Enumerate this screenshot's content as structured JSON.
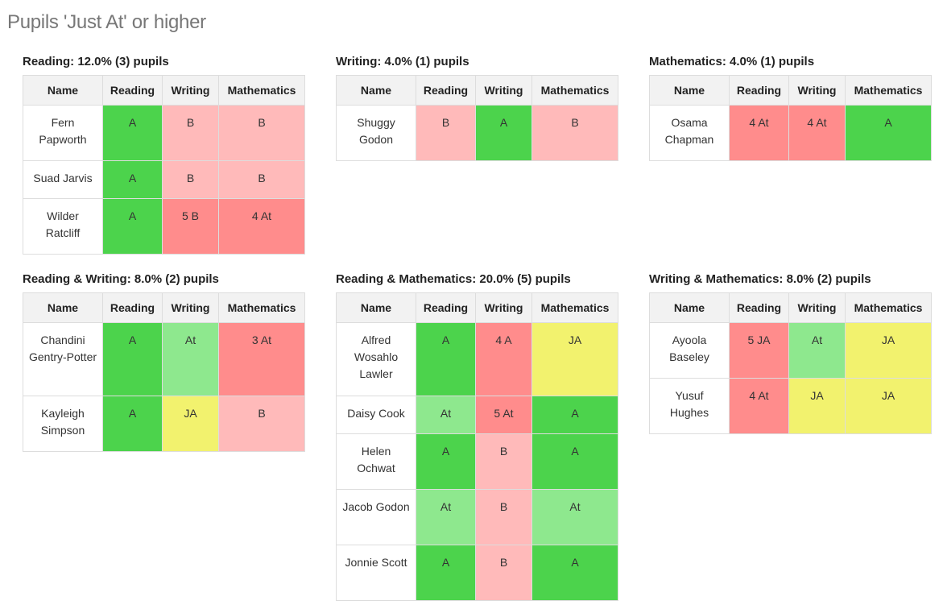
{
  "page_title": "Pupils 'Just At' or higher",
  "columns": [
    "Name",
    "Reading",
    "Writing",
    "Mathematics"
  ],
  "grade_colors": {
    "A": "#4cd34c",
    "At": "#8ee88e",
    "JA": "#f2f26e",
    "B": "#ffbaba",
    "below_with_score": "#ff8c8c",
    "header": "#f2f2f2",
    "border": "#dddddd"
  },
  "groups": [
    {
      "title": "Reading: 12.0% (3) pupils",
      "rows": [
        {
          "name": "Fern Papworth",
          "reading": "A",
          "writing": "B",
          "mathematics": "B"
        },
        {
          "name": "Suad Jarvis",
          "reading": "A",
          "writing": "B",
          "mathematics": "B"
        },
        {
          "name": "Wilder Ratcliff",
          "reading": "A",
          "writing": "5 B",
          "mathematics": "4 At"
        }
      ]
    },
    {
      "title": "Writing: 4.0% (1) pupils",
      "rows": [
        {
          "name": "Shuggy Godon",
          "reading": "B",
          "writing": "A",
          "mathematics": "B"
        }
      ]
    },
    {
      "title": "Mathematics: 4.0% (1) pupils",
      "rows": [
        {
          "name": "Osama Chapman",
          "reading": "4 At",
          "writing": "4 At",
          "mathematics": "A"
        }
      ]
    },
    {
      "title": "Reading & Writing: 8.0% (2) pupils",
      "rows": [
        {
          "name": "Chandini Gentry-Potter",
          "reading": "A",
          "writing": "At",
          "mathematics": "3 At"
        },
        {
          "name": "Kayleigh Simpson",
          "reading": "A",
          "writing": "JA",
          "mathematics": "B"
        }
      ]
    },
    {
      "title": "Reading & Mathematics: 20.0% (5) pupils",
      "rows": [
        {
          "name": "Alfred Wosahlo Lawler",
          "reading": "A",
          "writing": "4 A",
          "mathematics": "JA"
        },
        {
          "name": "Daisy Cook",
          "reading": "At",
          "writing": "5 At",
          "mathematics": "A"
        },
        {
          "name": "Helen Ochwat",
          "reading": "A",
          "writing": "B",
          "mathematics": "A"
        },
        {
          "name": "Jacob Godon",
          "reading": "At",
          "writing": "B",
          "mathematics": "At"
        },
        {
          "name": "Jonnie Scott",
          "reading": "A",
          "writing": "B",
          "mathematics": "A"
        }
      ]
    },
    {
      "title": "Writing & Mathematics: 8.0% (2) pupils",
      "rows": [
        {
          "name": "Ayoola Baseley",
          "reading": "5 JA",
          "writing": "At",
          "mathematics": "JA"
        },
        {
          "name": "Yusuf Hughes",
          "reading": "4 At",
          "writing": "JA",
          "mathematics": "JA"
        }
      ]
    }
  ]
}
